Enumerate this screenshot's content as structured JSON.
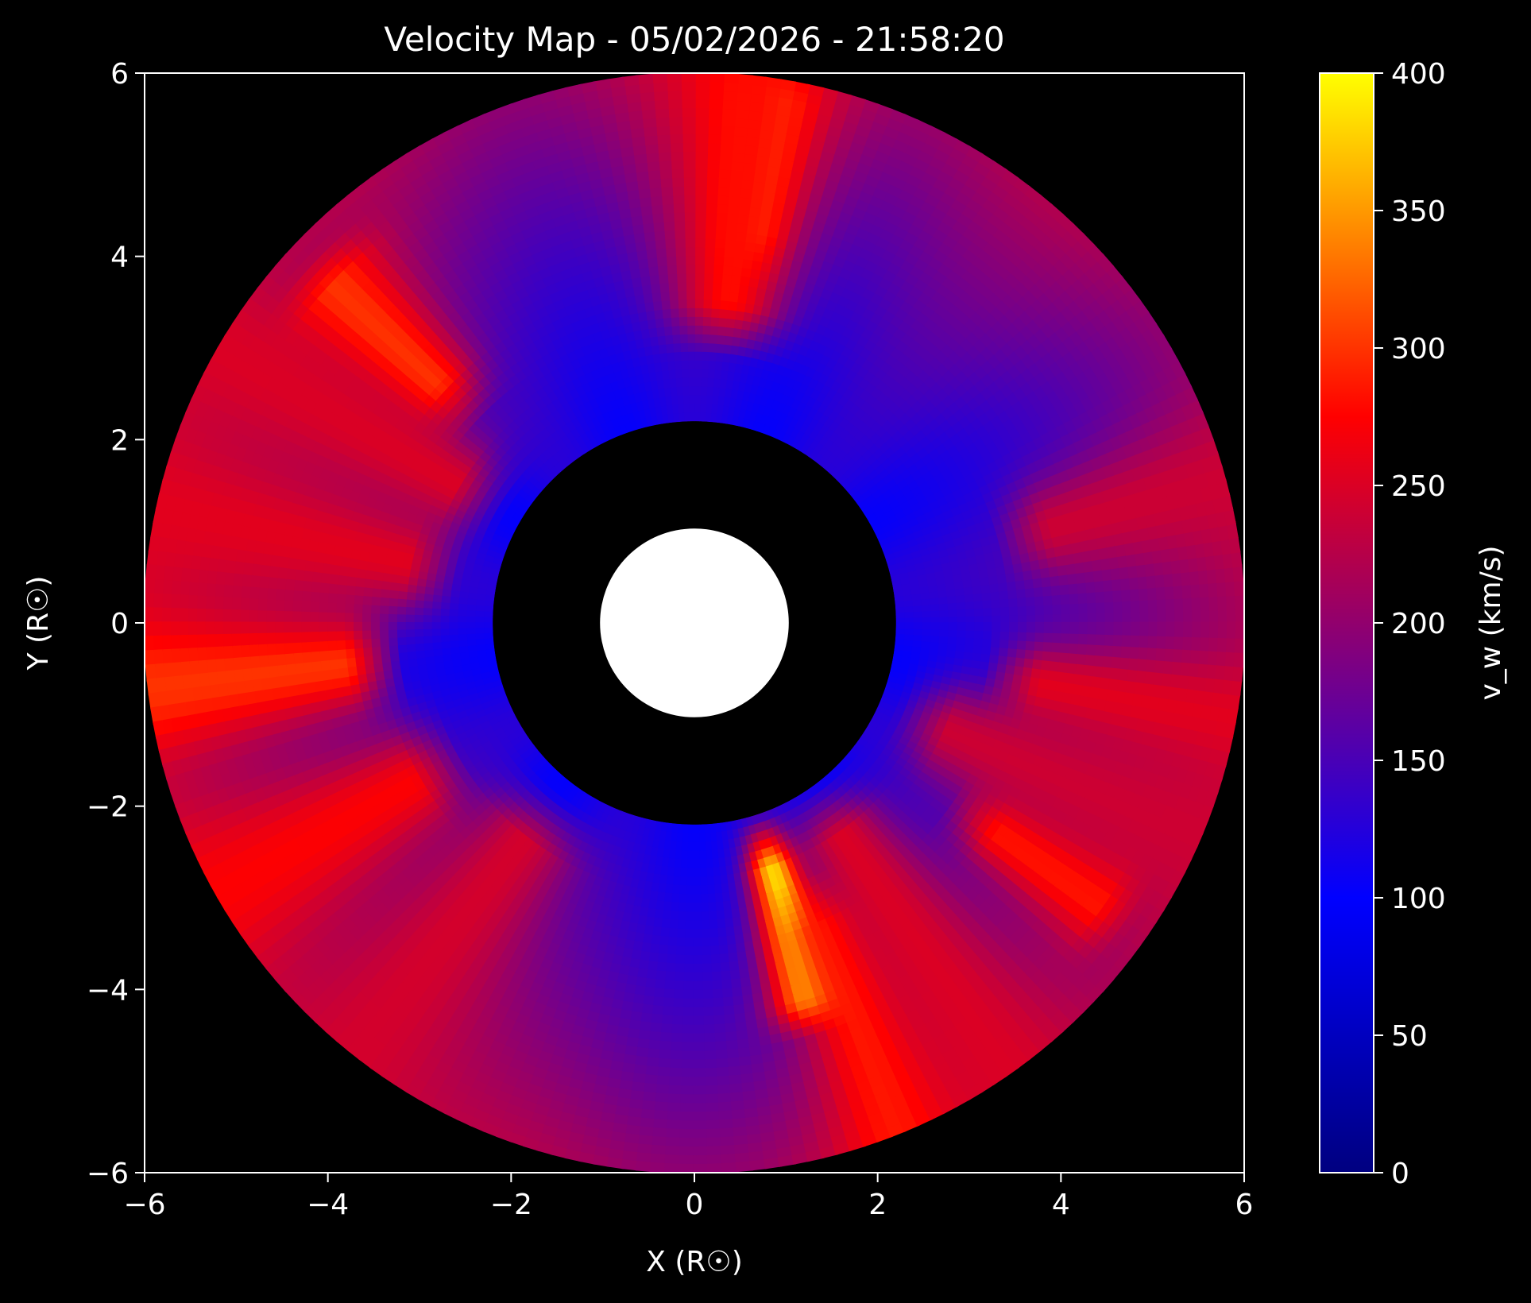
{
  "chart_data": {
    "type": "heatmap",
    "title": "Velocity Map - 05/02/2026 - 21:58:20",
    "xlabel": "X (R☉)",
    "ylabel": "Y (R☉)",
    "xlim": [
      -6,
      6
    ],
    "ylim": [
      -6,
      6
    ],
    "xticks": [
      -6,
      -4,
      -2,
      0,
      2,
      4,
      6
    ],
    "yticks": [
      -6,
      -4,
      -2,
      0,
      2,
      4,
      6
    ],
    "xtick_labels": [
      "−6",
      "−4",
      "−2",
      "0",
      "2",
      "4",
      "6"
    ],
    "ytick_labels": [
      "−6",
      "−4",
      "−2",
      "0",
      "2",
      "4",
      "6"
    ],
    "grid": false,
    "field": {
      "inner_radius": 2.2,
      "outer_radius": 6.0,
      "occulter_radius": 1.03,
      "streamers": [
        {
          "pa": 82,
          "v": 370,
          "width": 3,
          "rmin": 4.3,
          "rmax": 5.8
        },
        {
          "pa": 84,
          "v": 280,
          "width": 7,
          "rmin": 3.5,
          "rmax": 6.0
        },
        {
          "pa": 138,
          "v": 320,
          "width": 5,
          "rmin": 3.8,
          "rmax": 5.4
        },
        {
          "pa": 150,
          "v": 250,
          "width": 8,
          "rmin": 3.0,
          "rmax": 6.0
        },
        {
          "pa": 168,
          "v": 255,
          "width": 7,
          "rmin": 3.2,
          "rmax": 6.0
        },
        {
          "pa": 187,
          "v": 300,
          "width": 6,
          "rmin": 3.8,
          "rmax": 6.0
        },
        {
          "pa": 210,
          "v": 275,
          "width": 7,
          "rmin": 3.5,
          "rmax": 6.0
        },
        {
          "pa": 232,
          "v": 245,
          "width": 9,
          "rmin": 3.0,
          "rmax": 6.0
        },
        {
          "pa": 288,
          "v": 395,
          "width": 4,
          "rmin": 2.8,
          "rmax": 4.3
        },
        {
          "pa": 293,
          "v": 300,
          "width": 5,
          "rmin": 3.6,
          "rmax": 6.0
        },
        {
          "pa": 305,
          "v": 250,
          "width": 8,
          "rmin": 2.8,
          "rmax": 6.0
        },
        {
          "pa": 326,
          "v": 300,
          "width": 4,
          "rmin": 4.0,
          "rmax": 5.4
        },
        {
          "pa": 337,
          "v": 240,
          "width": 7,
          "rmin": 3.0,
          "rmax": 6.0
        },
        {
          "pa": 350,
          "v": 255,
          "width": 5,
          "rmin": 3.8,
          "rmax": 6.0
        },
        {
          "pa": 15,
          "v": 240,
          "width": 5,
          "rmin": 4.0,
          "rmax": 6.0
        }
      ]
    },
    "colorbar": {
      "label": "v_w (km/s)",
      "vmin": 0,
      "vmax": 400,
      "ticks": [
        0,
        50,
        100,
        150,
        200,
        250,
        300,
        350,
        400
      ],
      "colors": [
        "#000080",
        "#0000ff",
        "#ff0000",
        "#ffff00"
      ],
      "color_stops": [
        0,
        100,
        275,
        400
      ]
    },
    "colors": {
      "background": "#000000",
      "occulter": "#ffffff",
      "axes": "#ffffff"
    }
  }
}
